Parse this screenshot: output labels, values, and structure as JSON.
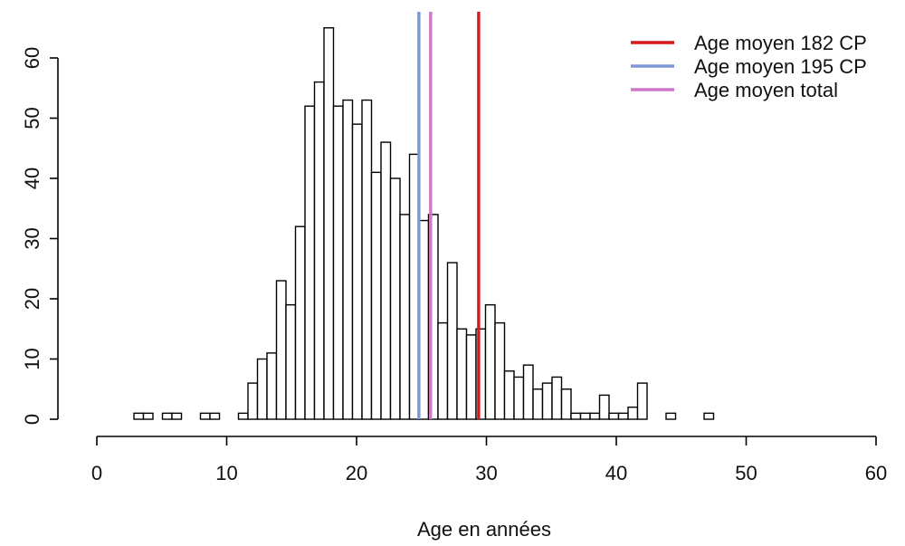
{
  "chart_data": {
    "type": "bar",
    "subtype": "histogram",
    "title": "",
    "xlabel": "Age en années",
    "ylabel": "",
    "xlim": [
      0,
      60
    ],
    "ylim": [
      0,
      65
    ],
    "x_ticks": [
      0,
      10,
      20,
      30,
      40,
      50,
      60
    ],
    "y_ticks": [
      0,
      10,
      20,
      30,
      40,
      50,
      60
    ],
    "grid": false,
    "legend_position": "top-right",
    "bin_width": 0.7,
    "bins": [
      {
        "x": 3.1,
        "count": 1
      },
      {
        "x": 3.8,
        "count": 1
      },
      {
        "x": 4.5,
        "count": 0
      },
      {
        "x": 5.2,
        "count": 1
      },
      {
        "x": 5.9,
        "count": 1
      },
      {
        "x": 6.6,
        "count": 0
      },
      {
        "x": 7.3,
        "count": 0
      },
      {
        "x": 8.0,
        "count": 1
      },
      {
        "x": 8.7,
        "count": 1
      },
      {
        "x": 9.4,
        "count": 0
      },
      {
        "x": 10.1,
        "count": 0
      },
      {
        "x": 10.8,
        "count": 1
      },
      {
        "x": 11.5,
        "count": 6
      },
      {
        "x": 12.2,
        "count": 10
      },
      {
        "x": 12.9,
        "count": 11
      },
      {
        "x": 13.6,
        "count": 23
      },
      {
        "x": 14.3,
        "count": 19
      },
      {
        "x": 15.0,
        "count": 32
      },
      {
        "x": 15.7,
        "count": 52
      },
      {
        "x": 16.4,
        "count": 56
      },
      {
        "x": 17.1,
        "count": 65
      },
      {
        "x": 17.8,
        "count": 52
      },
      {
        "x": 18.5,
        "count": 53
      },
      {
        "x": 19.2,
        "count": 49
      },
      {
        "x": 19.9,
        "count": 53
      },
      {
        "x": 20.6,
        "count": 41
      },
      {
        "x": 21.3,
        "count": 46
      },
      {
        "x": 22.0,
        "count": 40
      },
      {
        "x": 22.7,
        "count": 34
      },
      {
        "x": 23.4,
        "count": 44
      },
      {
        "x": 24.1,
        "count": 33
      },
      {
        "x": 24.8,
        "count": 34
      },
      {
        "x": 25.5,
        "count": 16
      },
      {
        "x": 26.2,
        "count": 26
      },
      {
        "x": 26.9,
        "count": 15
      },
      {
        "x": 27.6,
        "count": 14
      },
      {
        "x": 28.3,
        "count": 15
      },
      {
        "x": 29.0,
        "count": 19
      },
      {
        "x": 29.7,
        "count": 16
      },
      {
        "x": 30.4,
        "count": 8
      },
      {
        "x": 31.1,
        "count": 7
      },
      {
        "x": 31.8,
        "count": 9
      },
      {
        "x": 32.5,
        "count": 5
      },
      {
        "x": 33.2,
        "count": 6
      },
      {
        "x": 33.9,
        "count": 7
      },
      {
        "x": 34.6,
        "count": 5
      },
      {
        "x": 35.3,
        "count": 1
      },
      {
        "x": 36.0,
        "count": 1
      },
      {
        "x": 36.7,
        "count": 1
      },
      {
        "x": 37.4,
        "count": 4
      },
      {
        "x": 38.1,
        "count": 1
      },
      {
        "x": 38.8,
        "count": 1
      },
      {
        "x": 39.5,
        "count": 2
      },
      {
        "x": 40.2,
        "count": 6
      },
      {
        "x": 40.9,
        "count": 0
      },
      {
        "x": 41.6,
        "count": 0
      },
      {
        "x": 42.3,
        "count": 1
      },
      {
        "x": 43.0,
        "count": 0
      },
      {
        "x": 43.7,
        "count": 0
      },
      {
        "x": 44.4,
        "count": 0
      },
      {
        "x": 45.1,
        "count": 1
      }
    ],
    "reference_lines": [
      {
        "name": "Age moyen 182 CP",
        "x": 29.4,
        "color": "#d7191c"
      },
      {
        "name": "Age moyen 195 CP",
        "x": 24.8,
        "color": "#7b98d6"
      },
      {
        "name": "Age moyen total",
        "x": 25.7,
        "color": "#cf78c9"
      }
    ],
    "colors": {
      "bar_fill": "#ffffff",
      "bar_stroke": "#000000",
      "axis": "#000000"
    }
  }
}
